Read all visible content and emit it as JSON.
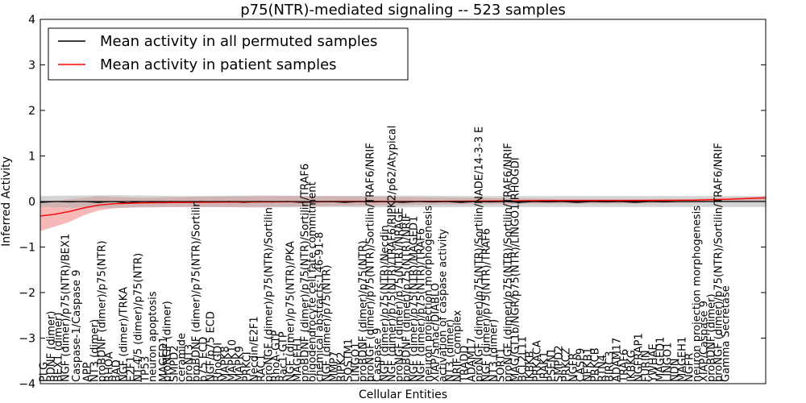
{
  "chart_data": {
    "type": "line",
    "title": "p75(NTR)-mediated signaling -- 523 samples",
    "xlabel": "Cellular Entities",
    "ylabel": "Inferred Activity",
    "ylim": [
      -4,
      4
    ],
    "yticks": [
      -4,
      -3,
      -2,
      -1,
      0,
      1,
      2,
      3,
      4
    ],
    "ytick_labels": [
      "−4",
      "−3",
      "−2",
      "−1",
      "0",
      "1",
      "2",
      "3",
      "4"
    ],
    "grid": false,
    "legend_position": "top-left",
    "legend": [
      {
        "label": "Mean activity in all permuted samples",
        "color": "#000000"
      },
      {
        "label": "Mean activity in patient samples",
        "color": "#ff0000"
      }
    ],
    "series": [
      {
        "name": "Mean activity in all permuted samples",
        "color": "#000000",
        "band_color": "#b0b0b0",
        "points": [
          [
            0,
            -0.02
          ],
          [
            2,
            0.0
          ],
          [
            4,
            -0.01
          ],
          [
            6,
            0.0
          ],
          [
            8,
            -0.02
          ],
          [
            10,
            0.0
          ],
          [
            12,
            -0.03
          ],
          [
            14,
            0.0
          ],
          [
            16,
            -0.01
          ],
          [
            18,
            0.0
          ],
          [
            20,
            -0.02
          ],
          [
            22,
            0.0
          ],
          [
            24,
            -0.01
          ],
          [
            26,
            0.0
          ],
          [
            28,
            -0.02
          ],
          [
            30,
            0.0
          ],
          [
            32,
            -0.01
          ],
          [
            34,
            0.0
          ],
          [
            36,
            -0.02
          ],
          [
            38,
            -0.01
          ],
          [
            40,
            0.0
          ],
          [
            42,
            -0.02
          ],
          [
            44,
            0.0
          ],
          [
            46,
            -0.01
          ],
          [
            48,
            0.0
          ],
          [
            50,
            -0.02
          ],
          [
            52,
            0.0
          ],
          [
            54,
            -0.01
          ],
          [
            56,
            0.0
          ],
          [
            58,
            -0.02
          ],
          [
            60,
            0.0
          ],
          [
            62,
            -0.01
          ],
          [
            64,
            0.0
          ],
          [
            66,
            -0.02
          ],
          [
            68,
            0.0
          ],
          [
            70,
            -0.01
          ],
          [
            72,
            0.0
          ],
          [
            74,
            -0.02
          ],
          [
            76,
            0.0
          ],
          [
            78,
            -0.01
          ],
          [
            80,
            0.0
          ],
          [
            82,
            -0.02
          ],
          [
            84,
            0.0
          ],
          [
            86,
            -0.01
          ],
          [
            88,
            0.0
          ],
          [
            90,
            0.0
          ],
          [
            92,
            0.0
          ],
          [
            94,
            0.0
          ],
          [
            96,
            0.0
          ],
          [
            98,
            0.0
          ],
          [
            100,
            0.0
          ]
        ],
        "band": [
          [
            0,
            -0.12,
            0.12
          ],
          [
            10,
            -0.14,
            0.14
          ],
          [
            20,
            -0.12,
            0.12
          ],
          [
            30,
            -0.13,
            0.13
          ],
          [
            40,
            -0.12,
            0.12
          ],
          [
            50,
            -0.13,
            0.13
          ],
          [
            60,
            -0.12,
            0.12
          ],
          [
            70,
            -0.12,
            0.12
          ],
          [
            80,
            -0.12,
            0.12
          ],
          [
            90,
            -0.12,
            0.12
          ],
          [
            100,
            -0.12,
            0.12
          ]
        ]
      },
      {
        "name": "Mean activity in patient samples",
        "color": "#ff0000",
        "band_color": "#f4a0a0",
        "points": [
          [
            0,
            -0.32
          ],
          [
            2,
            -0.28
          ],
          [
            4,
            -0.22
          ],
          [
            6,
            -0.14
          ],
          [
            8,
            -0.08
          ],
          [
            10,
            -0.05
          ],
          [
            14,
            -0.03
          ],
          [
            20,
            -0.02
          ],
          [
            30,
            -0.01
          ],
          [
            40,
            0.0
          ],
          [
            50,
            0.0
          ],
          [
            60,
            0.01
          ],
          [
            70,
            0.02
          ],
          [
            80,
            0.02
          ],
          [
            90,
            0.03
          ],
          [
            95,
            0.05
          ],
          [
            100,
            0.08
          ]
        ],
        "band": [
          [
            0,
            -0.65,
            0.0
          ],
          [
            2,
            -0.55,
            0.02
          ],
          [
            4,
            -0.45,
            0.05
          ],
          [
            6,
            -0.3,
            0.08
          ],
          [
            8,
            -0.2,
            0.12
          ],
          [
            10,
            -0.15,
            0.1
          ],
          [
            14,
            -0.12,
            0.08
          ],
          [
            20,
            -0.12,
            0.1
          ],
          [
            30,
            -0.12,
            0.12
          ],
          [
            40,
            -0.1,
            0.12
          ],
          [
            50,
            -0.08,
            0.1
          ],
          [
            60,
            -0.06,
            0.08
          ],
          [
            70,
            -0.05,
            0.06
          ],
          [
            80,
            -0.05,
            0.05
          ],
          [
            90,
            -0.03,
            0.05
          ],
          [
            95,
            0.0,
            0.08
          ],
          [
            100,
            0.02,
            0.12
          ]
        ]
      }
    ],
    "x_range": [
      0,
      100
    ],
    "entity_labels": [
      {
        "x": 0.5,
        "label": "PLG"
      },
      {
        "x": 1.5,
        "label": "BDNF (dimer)"
      },
      {
        "x": 2.5,
        "label": "BEX1 (dimer)"
      },
      {
        "x": 3.5,
        "label": "NGF (dimer)/p75(NTR)/BEX1"
      },
      {
        "x": 5.0,
        "label": "Caspase-1/Caspase 9"
      },
      {
        "x": 6.5,
        "label": "APP"
      },
      {
        "x": 7.5,
        "label": "NT3 (dimer)"
      },
      {
        "x": 8.5,
        "label": "proBDNF (dimer)/p75(NTR)"
      },
      {
        "x": 9.5,
        "label": "RHOA"
      },
      {
        "x": 10.5,
        "label": "BAD"
      },
      {
        "x": 11.5,
        "label": "NGF (dimer)/TRKA"
      },
      {
        "x": 12.5,
        "label": "E2F1"
      },
      {
        "x": 13.5,
        "label": "NT-4/5 (dimer)/p75(NTR)"
      },
      {
        "x": 14.5,
        "label": "TP53"
      },
      {
        "x": 15.5,
        "label": "neuron apoptosis"
      },
      {
        "x": 17.0,
        "label": "MAGED1"
      },
      {
        "x": 17.5,
        "label": "proNGF (dimer)"
      },
      {
        "x": 18.5,
        "label": "SMPD2"
      },
      {
        "x": 19.5,
        "label": "ceramide"
      },
      {
        "x": 20.5,
        "label": "proNT3"
      },
      {
        "x": 21.5,
        "label": "proBDNF (dimer)/p75(NTR)/Sortilin"
      },
      {
        "x": 22.5,
        "label": "p75 ECD"
      },
      {
        "x": 23.5,
        "label": "NGF/p75 ECD"
      },
      {
        "x": 24.5,
        "label": "RhoGDI"
      },
      {
        "x": 25.5,
        "label": "MAPK8"
      },
      {
        "x": 26.5,
        "label": "MAPK10"
      },
      {
        "x": 27.5,
        "label": "MAPK9"
      },
      {
        "x": 28.5,
        "label": "PRKCI"
      },
      {
        "x": 29.5,
        "label": "Necdin/E2F1"
      },
      {
        "x": 30.5,
        "label": "RAC1"
      },
      {
        "x": 31.5,
        "label": "proNGF (dimer)/p75(NTR)/Sortilin"
      },
      {
        "x": 32.5,
        "label": "RhoA-GTP"
      },
      {
        "x": 33.5,
        "label": "Rac1-GTP"
      },
      {
        "x": 34.5,
        "label": "NGF (dimer)/p75(NTR)/PKA"
      },
      {
        "x": 35.5,
        "label": "MAGEH1"
      },
      {
        "x": 36.5,
        "label": "proBDNF (dimer)/p75(NTR)/Sortilin/TRAF6"
      },
      {
        "x": 37.5,
        "label": "oligodendrocyte cell fate commitment"
      },
      {
        "x": 38.5,
        "label": "chemical abstracts:146-91-8"
      },
      {
        "x": 39.5,
        "label": "NGF (dimer)/p75(NTR)"
      },
      {
        "x": 40.5,
        "label": "MMP7"
      },
      {
        "x": 41.5,
        "label": "RIPK2"
      },
      {
        "x": 42.5,
        "label": "SQSTM1"
      },
      {
        "x": 43.5,
        "label": "LINGO1"
      },
      {
        "x": 44.5,
        "label": "proBDNF (dimer)/p75(NTR)"
      },
      {
        "x": 45.5,
        "label": "proNGF (dimer)/p75(NTR)/Sortilin/TRAF6/NRIF"
      },
      {
        "x": 46.5,
        "label": "Caspase 9"
      },
      {
        "x": 47.5,
        "label": "NGF (dimer)/p75(NTR)/Necdin"
      },
      {
        "x": 48.5,
        "label": "NGF (dimer)/p75(NTR)/TRAF6/RIPK2/p62/Atypical"
      },
      {
        "x": 49.5,
        "label": "proNGF (dimer)/p75(NTR)/NRAGE"
      },
      {
        "x": 50.5,
        "label": "proBDNF (dimer)/p75(NTR)/NRIF"
      },
      {
        "x": 51.5,
        "label": "NGF (dimer)/p75(NTR)/MAGED1"
      },
      {
        "x": 52.5,
        "label": "NGF (dimer)/p75(NTR)/TRAF6"
      },
      {
        "x": 53.5,
        "label": "neuron projection morphogenesis"
      },
      {
        "x": 54.5,
        "label": "XIAP/Smac/DIABLO"
      },
      {
        "x": 55.5,
        "label": "activation of caspase activity"
      },
      {
        "x": 56.5,
        "label": "NT3 (dimer)"
      },
      {
        "x": 57.5,
        "label": "NRIF complex"
      },
      {
        "x": 58.5,
        "label": "TRADD"
      },
      {
        "x": 59.5,
        "label": "ADAM17"
      },
      {
        "x": 60.5,
        "label": "proNGF (dimer)/p75(NTR)/Sortilin/NADE/14-3-3 E"
      },
      {
        "x": 61.5,
        "label": "NGF (dimer)/p75(NTR)/TRAF6"
      },
      {
        "x": 62.5,
        "label": "NT3 (dimer)"
      },
      {
        "x": 63.5,
        "label": "SORT1"
      },
      {
        "x": 64.5,
        "label": "proNGF (dimer)/p75(NTR)/Sortilin/TRAF6/NRIF"
      },
      {
        "x": 65.5,
        "label": "MAG/GT1b/NGR/p75(NTR)/LINGO1/RHOGDI"
      },
      {
        "x": 66.5,
        "label": "BCL2L11"
      },
      {
        "x": 67.5,
        "label": "IKBKB"
      },
      {
        "x": 68.5,
        "label": "PRKACA"
      },
      {
        "x": 69.5,
        "label": "IRAK1"
      },
      {
        "x": 70.5,
        "label": "PSEN1"
      },
      {
        "x": 71.5,
        "label": "SMPD2"
      },
      {
        "x": 72.5,
        "label": "PRKCZ"
      },
      {
        "x": 73.5,
        "label": "NGFR"
      },
      {
        "x": 74.5,
        "label": "CASP9"
      },
      {
        "x": 75.5,
        "label": "NFKB1"
      },
      {
        "x": 76.5,
        "label": "PRKCB"
      },
      {
        "x": 77.5,
        "label": "RTN4"
      },
      {
        "x": 78.5,
        "label": "BIRC3"
      },
      {
        "x": 79.5,
        "label": "ADAM17"
      },
      {
        "x": 80.5,
        "label": "TRAF6"
      },
      {
        "x": 81.5,
        "label": "IKBKG"
      },
      {
        "x": 82.5,
        "label": "NGFRAP1"
      },
      {
        "x": 83.5,
        "label": "FURIN"
      },
      {
        "x": 84.5,
        "label": "YWHAE"
      },
      {
        "x": 85.5,
        "label": "MAGED1"
      },
      {
        "x": 86.5,
        "label": "LINGO1"
      },
      {
        "x": 87.5,
        "label": "NDN"
      },
      {
        "x": 88.5,
        "label": "MAGEH1"
      },
      {
        "x": 89.5,
        "label": "NGFR"
      },
      {
        "x": 90.5,
        "label": "neuron projection morphogenesis"
      },
      {
        "x": 91.5,
        "label": "XIAP/Caspase 9"
      },
      {
        "x": 92.5,
        "label": "proBDNF (dimer)"
      },
      {
        "x": 93.5,
        "label": "proNGF (dimer)/p75(NTR)/Sortilin/TRAF6/NRIF"
      },
      {
        "x": 94.5,
        "label": "Gamma Secretase"
      }
    ]
  }
}
